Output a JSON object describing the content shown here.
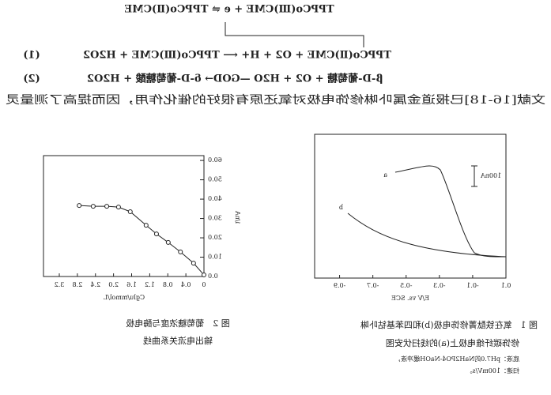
{
  "equations": [
    {
      "text": "TPPCo(Ⅲ)CME + e ⇌ TPPCo(Ⅱ)CME"
    },
    {
      "text": "TPPCo(Ⅱ)CME + O2 + H+ ⟵ TPPCo(Ⅲ)CME + H2O2",
      "number": "(1)"
    },
    {
      "text": "β-D-葡萄糖 + O2 + H2O —GOD→ δ-D-葡萄糖酸 + H2O2",
      "number": "(2)"
    }
  ],
  "paragraph": "文献[16-18]已报道金属卟啉修饰电极对氧还原有很好的催化作用，因而提高了测量灵",
  "figure1": {
    "xlabel": "E/V vs. SCE",
    "xlim": [
      0.1,
      -1.05
    ],
    "xticks": [
      0.1,
      -0.1,
      -0.3,
      -0.5,
      -0.7,
      -0.9
    ],
    "scale_label": "100nA",
    "curve_labels": [
      "a",
      "b"
    ],
    "caption": [
      "图 1　氧在铁酞菁修饰电极(b)和四苯基钴卟啉",
      "修饰碳纤维电极上(a)的线扫伏安图",
      "底液：pH7.0的NaH2PO4-NaOH缓冲液，",
      "扫速：100mV/s。"
    ]
  },
  "figure2": {
    "xlabel": "Cglu/mmol/L",
    "ylabel": "i/nA",
    "xlim": [
      0,
      3.55
    ],
    "ylim": [
      0,
      62.5
    ],
    "xticks": [
      0,
      0.4,
      0.8,
      1.2,
      1.6,
      {
        "value": 2,
        "label": "2.0"
      },
      2.4,
      2.8,
      3.2
    ],
    "yticks": [
      {
        "value": 0,
        "label": "0.0"
      },
      {
        "value": 10,
        "label": "10.0"
      },
      {
        "value": 20,
        "label": "20.0"
      },
      {
        "value": 30,
        "label": "30.0"
      },
      {
        "value": 40,
        "label": "40.0"
      },
      {
        "value": 50,
        "label": "50.0"
      },
      {
        "value": 60,
        "label": "60.0"
      }
    ],
    "x": [
      0,
      0.23,
      0.52,
      0.79,
      1.05,
      1.28,
      1.63,
      1.89,
      2.15,
      2.45,
      2.76
    ],
    "y": [
      0.8,
      6.9,
      12.7,
      17.6,
      22.0,
      26.5,
      33.5,
      35.9,
      36.3,
      36.3,
      36.7
    ],
    "caption": [
      "图 2　葡萄糖浓度与酶电极",
      "输出电流关系曲线"
    ]
  }
}
